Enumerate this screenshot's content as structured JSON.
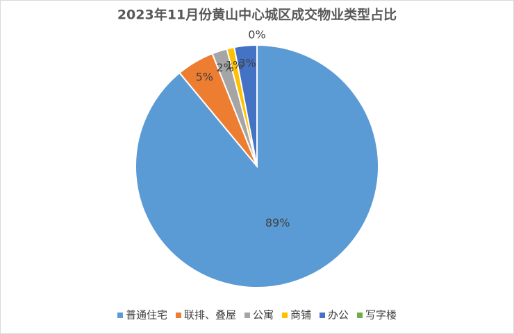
{
  "chart_data": {
    "type": "pie",
    "title": "2023年11月份黄山中心城区成交物业类型占比",
    "categories": [
      "普通住宅",
      "联排、叠屋",
      "公寓",
      "商铺",
      "办公",
      "写字楼"
    ],
    "values": [
      89,
      5,
      2,
      1,
      3,
      0
    ],
    "value_labels": [
      "89%",
      "5%",
      "2%",
      "1%",
      "3%",
      "0%"
    ],
    "colors": [
      "#5b9bd5",
      "#ed7d31",
      "#a5a5a5",
      "#ffc000",
      "#4472c4",
      "#70ad47"
    ],
    "legend": "bottom"
  }
}
